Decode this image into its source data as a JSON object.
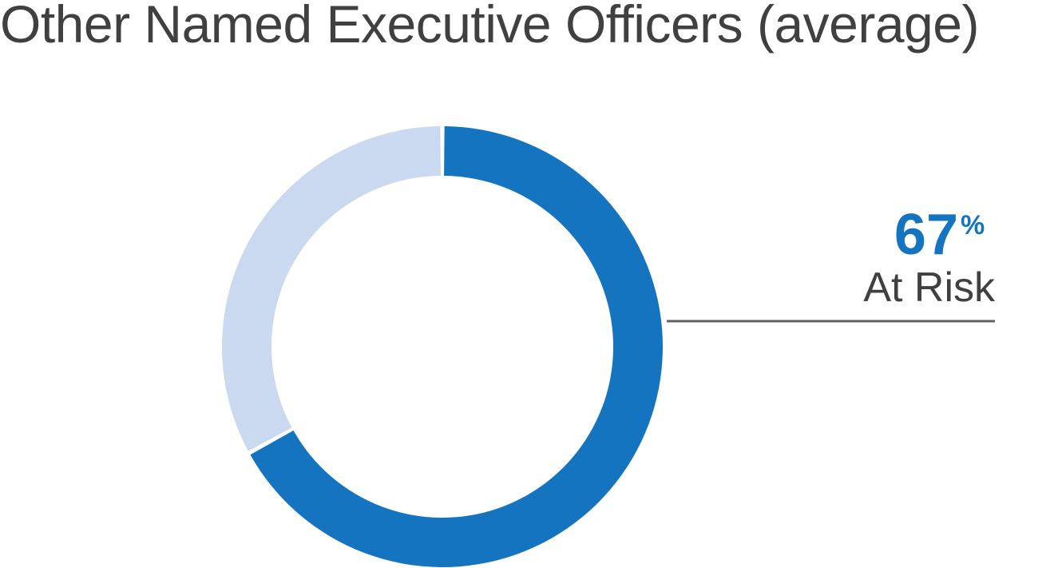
{
  "title": "Other Named Executive Officers (average)",
  "chart_data": {
    "type": "pie",
    "style": "donut",
    "series": [
      {
        "name": "At Risk",
        "value": 67,
        "color": "#1474c0"
      },
      {
        "name": "",
        "value": 33,
        "color": "#cad9ef"
      }
    ],
    "callout": {
      "value": "67",
      "unit": "%",
      "label": "At Risk"
    }
  },
  "colors": {
    "title": "#404040",
    "callout_value": "#1474c0",
    "callout_label": "#404040",
    "leader_line": "#606060"
  }
}
